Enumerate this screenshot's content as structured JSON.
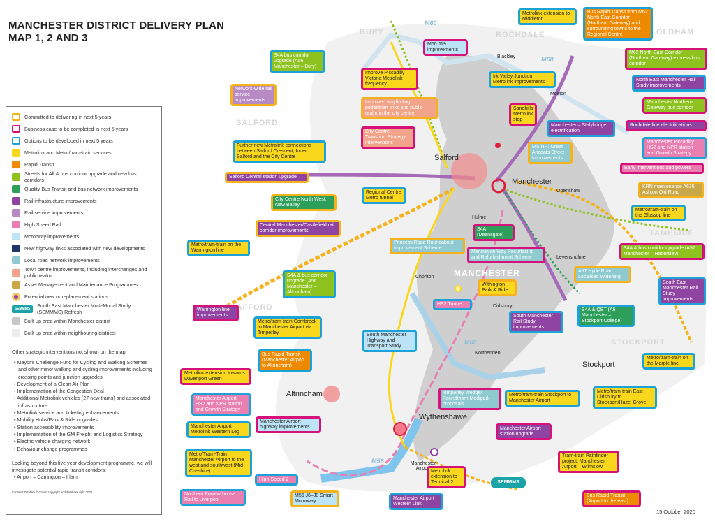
{
  "title": {
    "line1": "MANCHESTER DISTRICT DELIVERY PLAN",
    "line2": "MAP 1, 2 AND 3"
  },
  "date": "15 October 2020",
  "colors": {
    "committed": "#f6b21b",
    "business_case": "#d6127a",
    "options": "#1ba3d9",
    "metrolink": "#f9d71c",
    "rapid_transit": "#ee8a00",
    "streets_for_all": "#8dc21f",
    "quality_bus": "#2e9e5b",
    "rail_infra": "#8e44a0",
    "rail_service": "#b88ac4",
    "high_speed": "#e97fb0",
    "motorway": "#bde4f6",
    "new_highway": "#1b3a6b",
    "local_road": "#8ecad0",
    "town_centre": "#f2a48a",
    "asset": "#c9a84a",
    "semmms": "#1ba3a8",
    "built_up_manchester": "#c8c8c8",
    "built_up_neighbouring": "#ececec"
  },
  "legend": {
    "items": [
      {
        "label": "Committed to delivering in next 5 years",
        "swatch": "outline",
        "color": "committed"
      },
      {
        "label": "Business case to be completed in next 5 years",
        "swatch": "outline",
        "color": "business_case"
      },
      {
        "label": "Options to be developed in next 5 years",
        "swatch": "outline",
        "color": "options"
      },
      {
        "label": "Metrolink and Metro/tram-train services",
        "swatch": "fill",
        "color": "metrolink"
      },
      {
        "label": "Rapid Transit",
        "swatch": "fill",
        "color": "rapid_transit"
      },
      {
        "label": "Streets for All & bus corridor upgrade and new bus corridors",
        "swatch": "fill",
        "color": "streets_for_all"
      },
      {
        "label": "Quality Bus Transit and bus network improvements",
        "swatch": "fill",
        "color": "quality_bus"
      },
      {
        "label": "Rail infrastructure improvements",
        "swatch": "fill",
        "color": "rail_infra"
      },
      {
        "label": "Rail service improvements",
        "swatch": "fill",
        "color": "rail_service"
      },
      {
        "label": "High Speed Rail",
        "swatch": "fill",
        "color": "high_speed"
      },
      {
        "label": "Motorway improvements",
        "swatch": "fill",
        "color": "motorway"
      },
      {
        "label": "New highway links associated with new developments",
        "swatch": "fill",
        "color": "new_highway"
      },
      {
        "label": "Local road network improvements",
        "swatch": "fill",
        "color": "local_road"
      },
      {
        "label": "Town centre improvements, including interchanges and public realm",
        "swatch": "fill",
        "color": "town_centre"
      },
      {
        "label": "Asset Management and Maintenance Programmes",
        "swatch": "fill",
        "color": "asset"
      },
      {
        "label": "Potential new or replacement stations",
        "swatch": "dot",
        "color": "rail_infra"
      },
      {
        "label": "South East Manchester Multi-Modal Study (SEMMMS) Refresh",
        "swatch": "semm",
        "color": "semmms",
        "badge": "SEMMMS"
      },
      {
        "label": "Built up area within Manchester district",
        "swatch": "fill",
        "color": "built_up_manchester"
      },
      {
        "label": "Built up area within neighbouring districts",
        "swatch": "fill",
        "color": "built_up_neighbouring"
      }
    ],
    "other_title": "Other strategic interventions not shown on the map:",
    "other_items": [
      "Mayor's Challenge Fund for Cycling and Walking Schemes and other minor walking and cycling improvements including crossing points and junction upgrades",
      "Development of a Clean Air Plan",
      "Implementation of the Congestion Deal",
      "Additional Metrolink vehicles (27 new trams) and associated infrastructure",
      "Metrolink service and ticketing enhancements",
      "Mobility Hubs/Park & Ride upgrades",
      "Station accessibility improvements",
      "Implementation of the GM Freight and Logistics Strategy",
      "Electric vehicle charging network",
      "Behaviour change programmes"
    ],
    "beyond_text": "Looking beyond this five year development programme, we will investigate potential rapid transit corridors:",
    "beyond_items": [
      "Airport – Carrington – Irlam"
    ],
    "copyright": "Contains OS data © Crown copyright and database right 2020"
  },
  "districts": [
    "BURY",
    "ROCHDALE",
    "OLDHAM",
    "SALFORD",
    "TAMESIDE",
    "TRAFFORD",
    "STOCKPORT",
    "MANCHESTER"
  ],
  "towns": [
    "Salford",
    "Manchester",
    "Blackley",
    "Moston",
    "Openshaw",
    "Hulme",
    "Chorlton",
    "Levenshulme",
    "Didsbury",
    "Northenden",
    "Stockport",
    "Altrincham",
    "Wythenshawe",
    "Manchester Airport"
  ],
  "motorways": [
    "M60",
    "M60",
    "M60",
    "M56"
  ],
  "boxes": [
    {
      "text": "Metrolink extension to Middleton",
      "fill": "metrolink",
      "status": "options"
    },
    {
      "text": "Bus Rapid Transit from M62 North-East Corridor (Northern Gateway) and surrounding towns to the Regional Centre",
      "fill": "rapid_transit",
      "status": "options"
    },
    {
      "text": "M60 J19 improvements",
      "fill": "motorway",
      "status": "business_case"
    },
    {
      "text": "S4A bus corridor upgrade (A56 Manchester – Bury)",
      "fill": "streets_for_all",
      "status": "options"
    },
    {
      "text": "M62 North-East Corridor (Northern Gateway) express bus corridor",
      "fill": "streets_for_all",
      "status": "business_case"
    },
    {
      "text": "Improve Piccadilly – Victoria Metrolink frequency",
      "fill": "metrolink",
      "status": "business_case"
    },
    {
      "text": "Irk Valley Junction Metrolink improvements",
      "fill": "metrolink",
      "status": "options"
    },
    {
      "text": "North East Manchester Rail Study improvements",
      "fill": "rail_infra",
      "status": "options"
    },
    {
      "text": "Network-wide rail service improvements",
      "fill": "rail_service",
      "status": "committed"
    },
    {
      "text": "Improved wayfinding, pedestrian links and public realm in the city centre",
      "fill": "town_centre",
      "status": "committed"
    },
    {
      "text": "Manchester Northern Gateway bus corridor",
      "fill": "streets_for_all",
      "status": "business_case"
    },
    {
      "text": "Sandhills Metrolink stop",
      "fill": "metrolink",
      "status": "business_case"
    },
    {
      "text": "City Centre Transport Strategy interventions",
      "fill": "town_centre",
      "status": "business_case"
    },
    {
      "text": "Manchester – Stalybridge electrification",
      "fill": "rail_infra",
      "status": "options"
    },
    {
      "text": "Rochdale line electrifications",
      "fill": "rail_infra",
      "status": "business_case"
    },
    {
      "text": "Further new Metrolink connections between Salford Crescent, Inner Salford and the City Centre",
      "fill": "metrolink",
      "status": "options"
    },
    {
      "text": "MSIRR: Great Ancoats Street Improvements",
      "fill": "local_road",
      "status": "committed"
    },
    {
      "text": "Manchester Piccadilly HS2 and NPR station and Growth Strategy",
      "fill": "high_speed",
      "status": "options"
    },
    {
      "text": "Salford Central station upgrade",
      "fill": "rail_infra",
      "status": "committed"
    },
    {
      "text": "Early interventions and powers",
      "fill": "high_speed",
      "status": "business_case"
    },
    {
      "text": "Regional Centre Metro tunnel",
      "fill": "metrolink",
      "status": "options"
    },
    {
      "text": "City Centre North West: New Bailey",
      "fill": "quality_bus",
      "status": "committed"
    },
    {
      "text": "KRN maintenance A635 Ashton Old Road",
      "fill": "asset",
      "status": "committed"
    },
    {
      "text": "Metro/tram-train on the Glossop line",
      "fill": "metrolink",
      "status": "options"
    },
    {
      "text": "Central Manchester/Castlefield rail corridor improvements",
      "fill": "rail_infra",
      "status": "committed"
    },
    {
      "text": "S4A (Deansgate)",
      "fill": "quality_bus",
      "status": "business_case"
    },
    {
      "text": "Metro/tram-train on the Warrington line",
      "fill": "metrolink",
      "status": "options"
    },
    {
      "text": "Princess Road Roundabout Improvement Scheme",
      "fill": "local_road",
      "status": "committed"
    },
    {
      "text": "Mancunian Way Resurfacing and Refurbishment Scheme",
      "fill": "local_road",
      "status": "business_case"
    },
    {
      "text": "S4A & bus corridor upgrade (A57 Manchester – Hattersley)",
      "fill": "streets_for_all",
      "status": "business_case"
    },
    {
      "text": "S4A & bus corridor upgrade (A56 Manchester – Altrincham)",
      "fill": "streets_for_all",
      "status": "options"
    },
    {
      "text": "A57 Hyde Road Localised Widening",
      "fill": "local_road",
      "status": "committed"
    },
    {
      "text": "Withington Park & Ride",
      "fill": "metrolink",
      "status": "committed"
    },
    {
      "text": "Warrington line improvements",
      "fill": "rail_infra",
      "status": "business_case"
    },
    {
      "text": "South East Manchester Rail Study improvements",
      "fill": "rail_infra",
      "status": "options"
    },
    {
      "text": "HS2 Tunnel",
      "fill": "high_speed",
      "status": "options"
    },
    {
      "text": "South Manchester Rail Study improvements",
      "fill": "rail_infra",
      "status": "options"
    },
    {
      "text": "S4A & QBT (A6 Manchester – Stockport College)",
      "fill": "quality_bus",
      "status": "options"
    },
    {
      "text": "Metro/tram-train Cornbrook to Manchester Airport via Timperley",
      "fill": "metrolink",
      "status": "options"
    },
    {
      "text": "South Manchester Highway and Transport Study",
      "fill": "motorway",
      "status": "options"
    },
    {
      "text": "Bus Rapid Transit (Manchester Airport to Altrincham)",
      "fill": "rapid_transit",
      "status": "options"
    },
    {
      "text": "Metro/tram-train on the Marple line",
      "fill": "metrolink",
      "status": "options"
    },
    {
      "text": "Metrolink extension towards Davenport Green",
      "fill": "metrolink",
      "status": "business_case"
    },
    {
      "text": "Timperley Wedge/ Roundthorn Medipark proposals",
      "fill": "local_road",
      "status": "business_case"
    },
    {
      "text": "Metro/tram-train Stockport to Manchester Airport",
      "fill": "metrolink",
      "status": "options"
    },
    {
      "text": "Metro/tram-train East Didsbury to Stockport/Hazel Grove",
      "fill": "metrolink",
      "status": "options"
    },
    {
      "text": "Manchester Airport HS2 and NPR station and Growth Strategy",
      "fill": "high_speed",
      "status": "options"
    },
    {
      "text": "Manchester Airport highway improvements",
      "fill": "motorway",
      "status": "business_case"
    },
    {
      "text": "Manchester Airport Metrolink Western Leg",
      "fill": "metrolink",
      "status": "options"
    },
    {
      "text": "Manchester Airport station upgrade",
      "fill": "rail_infra",
      "status": "business_case"
    },
    {
      "text": "Metro/Tram-Train Manchester Airport to the west and southwest (Mid Cheshire)",
      "fill": "metrolink",
      "status": "options"
    },
    {
      "text": "Tram-train Pathfinder project: Manchester Airport – Wilmslow",
      "fill": "metrolink",
      "status": "business_case"
    },
    {
      "text": "High Speed 2",
      "fill": "high_speed",
      "status": "options"
    },
    {
      "text": "Metrolink extension to Terminal 2",
      "fill": "metrolink",
      "status": "business_case"
    },
    {
      "text": "SEMMMS",
      "fill": "semmms",
      "status": "semmms"
    },
    {
      "text": "Northern Powewrhouse Rail to Liverpool",
      "fill": "high_speed",
      "status": "options"
    },
    {
      "text": "M56 J6–J8 Smart Motorway",
      "fill": "motorway",
      "status": "committed"
    },
    {
      "text": "Manchester Airport Western Link",
      "fill": "rail_infra",
      "status": "options"
    },
    {
      "text": "Bus Rapid Transit (Airport to the east)",
      "fill": "rapid_transit",
      "status": "business_case"
    }
  ]
}
